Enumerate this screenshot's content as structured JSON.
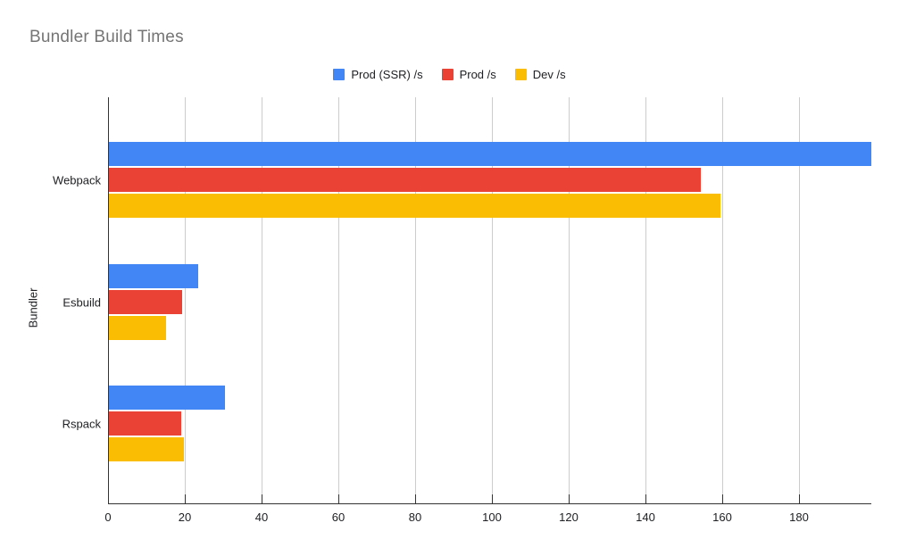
{
  "chart_data": {
    "type": "bar",
    "orientation": "horizontal",
    "title": "Bundler Build Times",
    "xlabel": "",
    "ylabel": "Bundler",
    "categories": [
      "Webpack",
      "Esbuild",
      "Rspack"
    ],
    "series": [
      {
        "name": "Prod (SSR) /s",
        "color": "#4285F4",
        "values": [
          198.9,
          23.4,
          30.4
        ]
      },
      {
        "name": "Prod /s",
        "color": "#EA4335",
        "values": [
          154.5,
          19.3,
          19.0
        ]
      },
      {
        "name": "Dev /s",
        "color": "#FBBC04",
        "values": [
          159.5,
          15.1,
          19.8
        ]
      }
    ],
    "xlim": [
      0,
      198.9
    ],
    "xticks": [
      0,
      20,
      40,
      60,
      80,
      100,
      120,
      140,
      160,
      180
    ],
    "grid": true,
    "legend_position": "top"
  },
  "style_colors": {
    "title_text": "#757575",
    "axis_text": "#202124",
    "axis_line": "#333333",
    "gridline": "#cccccc",
    "background": "#ffffff"
  }
}
